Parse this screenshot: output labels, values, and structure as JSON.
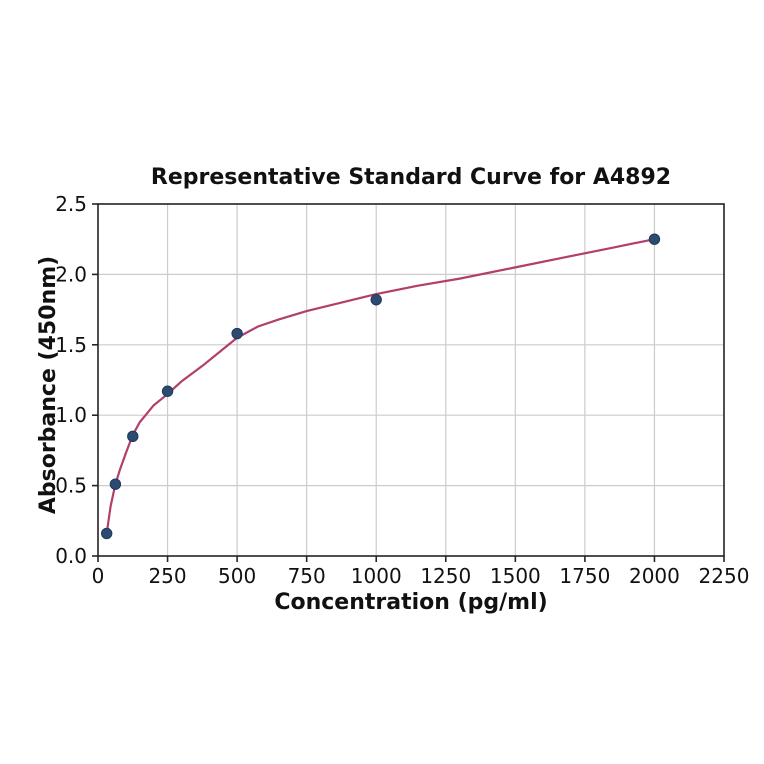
{
  "figure": {
    "background": "#ffffff"
  },
  "chart_data": {
    "type": "scatter",
    "title": "Representative Standard Curve for A4892",
    "xlabel": "Concentration (pg/ml)",
    "ylabel": "Absorbance (450nm)",
    "xlim": [
      0,
      2250
    ],
    "ylim": [
      0,
      2.5
    ],
    "grid": true,
    "legend": "none",
    "xticks": {
      "values": [
        0,
        250,
        500,
        750,
        1000,
        1250,
        1500,
        1750,
        2000,
        2250
      ],
      "labels": [
        "0",
        "250",
        "500",
        "750",
        "1000",
        "1250",
        "1500",
        "1750",
        "2000",
        "2250"
      ]
    },
    "yticks": {
      "values": [
        0,
        0.5,
        1.0,
        1.5,
        2.0,
        2.5
      ],
      "labels": [
        "0.0",
        "0.5",
        "1.0",
        "1.5",
        "2.0",
        "2.5"
      ]
    },
    "series": [
      {
        "name": "fitted-curve",
        "kind": "line",
        "color": "#b23f6a",
        "width": 2.2,
        "x": [
          31.25,
          45,
          62.5,
          80,
          100,
          125,
          150,
          175,
          200,
          250,
          300,
          375,
          450,
          500,
          575,
          650,
          750,
          875,
          1000,
          1150,
          1300,
          1500,
          1700,
          1850,
          2000
        ],
        "y": [
          0.16,
          0.35,
          0.51,
          0.62,
          0.73,
          0.86,
          0.95,
          1.01,
          1.07,
          1.15,
          1.24,
          1.35,
          1.47,
          1.55,
          1.63,
          1.68,
          1.74,
          1.8,
          1.86,
          1.92,
          1.97,
          2.05,
          2.13,
          2.19,
          2.25
        ]
      },
      {
        "name": "standard-points",
        "kind": "scatter",
        "color": "#2d4b71",
        "edge": "#1e3a5c",
        "radius": 5.2,
        "x": [
          31.25,
          62.5,
          125,
          250,
          500,
          1000,
          2000
        ],
        "y": [
          0.16,
          0.51,
          0.85,
          1.17,
          1.58,
          1.82,
          2.25
        ]
      }
    ],
    "style": {
      "grid_color": "#cccccc",
      "grid_width": 1.2,
      "spine_color": "#262626",
      "spine_width": 1.6,
      "tick_color": "#262626",
      "tick_length": 6,
      "text_color": "#111111"
    }
  }
}
